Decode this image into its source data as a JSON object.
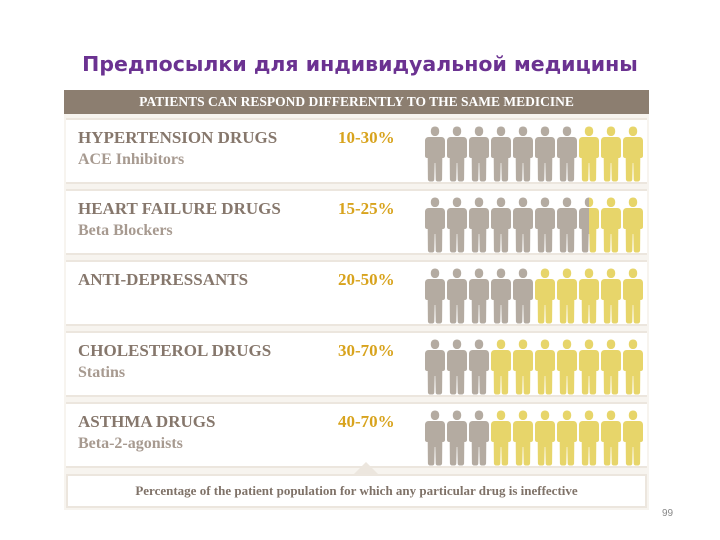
{
  "slide_title": "Предпосылки для индивидуальной медицины",
  "banner": "PATIENTS CAN RESPOND DIFFERENTLY TO THE SAME MEDICINE",
  "rows": [
    {
      "name": "HYPERTENSION DRUGS",
      "sub": "ACE Inhibitors",
      "percent": "10-30%",
      "ineffective_figures": 3
    },
    {
      "name": "HEART FAILURE DRUGS",
      "sub": "Beta Blockers",
      "percent": "15-25%",
      "ineffective_figures": 2.5
    },
    {
      "name": "ANTI-DEPRESSANTS",
      "sub": "",
      "percent": "20-50%",
      "ineffective_figures": 5
    },
    {
      "name": "CHOLESTEROL DRUGS",
      "sub": "Statins",
      "percent": "30-70%",
      "ineffective_figures": 7
    },
    {
      "name": "ASTHMA DRUGS",
      "sub": "Beta-2-agonists",
      "percent": "40-70%",
      "ineffective_figures": 7
    }
  ],
  "figures_per_row": 10,
  "colors": {
    "title": "#6b3291",
    "banner_bg": "#8c7e70",
    "responder_figure": "#b4aba1",
    "ineffective_figure": "#e7d56a",
    "percent_text": "#d8a31d"
  },
  "caption": "Percentage of the patient population for which any particular drug is ineffective",
  "page_number": "99"
}
